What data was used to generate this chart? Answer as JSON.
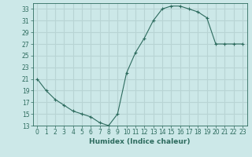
{
  "x": [
    0,
    1,
    2,
    3,
    4,
    5,
    6,
    7,
    8,
    9,
    10,
    11,
    12,
    13,
    14,
    15,
    16,
    17,
    18,
    19,
    20,
    21,
    22,
    23
  ],
  "y": [
    21,
    19,
    17.5,
    16.5,
    15.5,
    15,
    14.5,
    13.5,
    13,
    15,
    22,
    25.5,
    28,
    31,
    33,
    33.5,
    33.5,
    33,
    32.5,
    31.5,
    27,
    27,
    27,
    27
  ],
  "line_color": "#2d6b5e",
  "marker": "+",
  "bg_color": "#cce8e8",
  "grid_color": "#b8d4d4",
  "xlabel": "Humidex (Indice chaleur)",
  "ylim": [
    13,
    34
  ],
  "xlim": [
    -0.5,
    23.5
  ],
  "yticks": [
    13,
    15,
    17,
    19,
    21,
    23,
    25,
    27,
    29,
    31,
    33
  ],
  "xticks": [
    0,
    1,
    2,
    3,
    4,
    5,
    6,
    7,
    8,
    9,
    10,
    11,
    12,
    13,
    14,
    15,
    16,
    17,
    18,
    19,
    20,
    21,
    22,
    23
  ],
  "label_fontsize": 6.5,
  "tick_fontsize": 5.5
}
